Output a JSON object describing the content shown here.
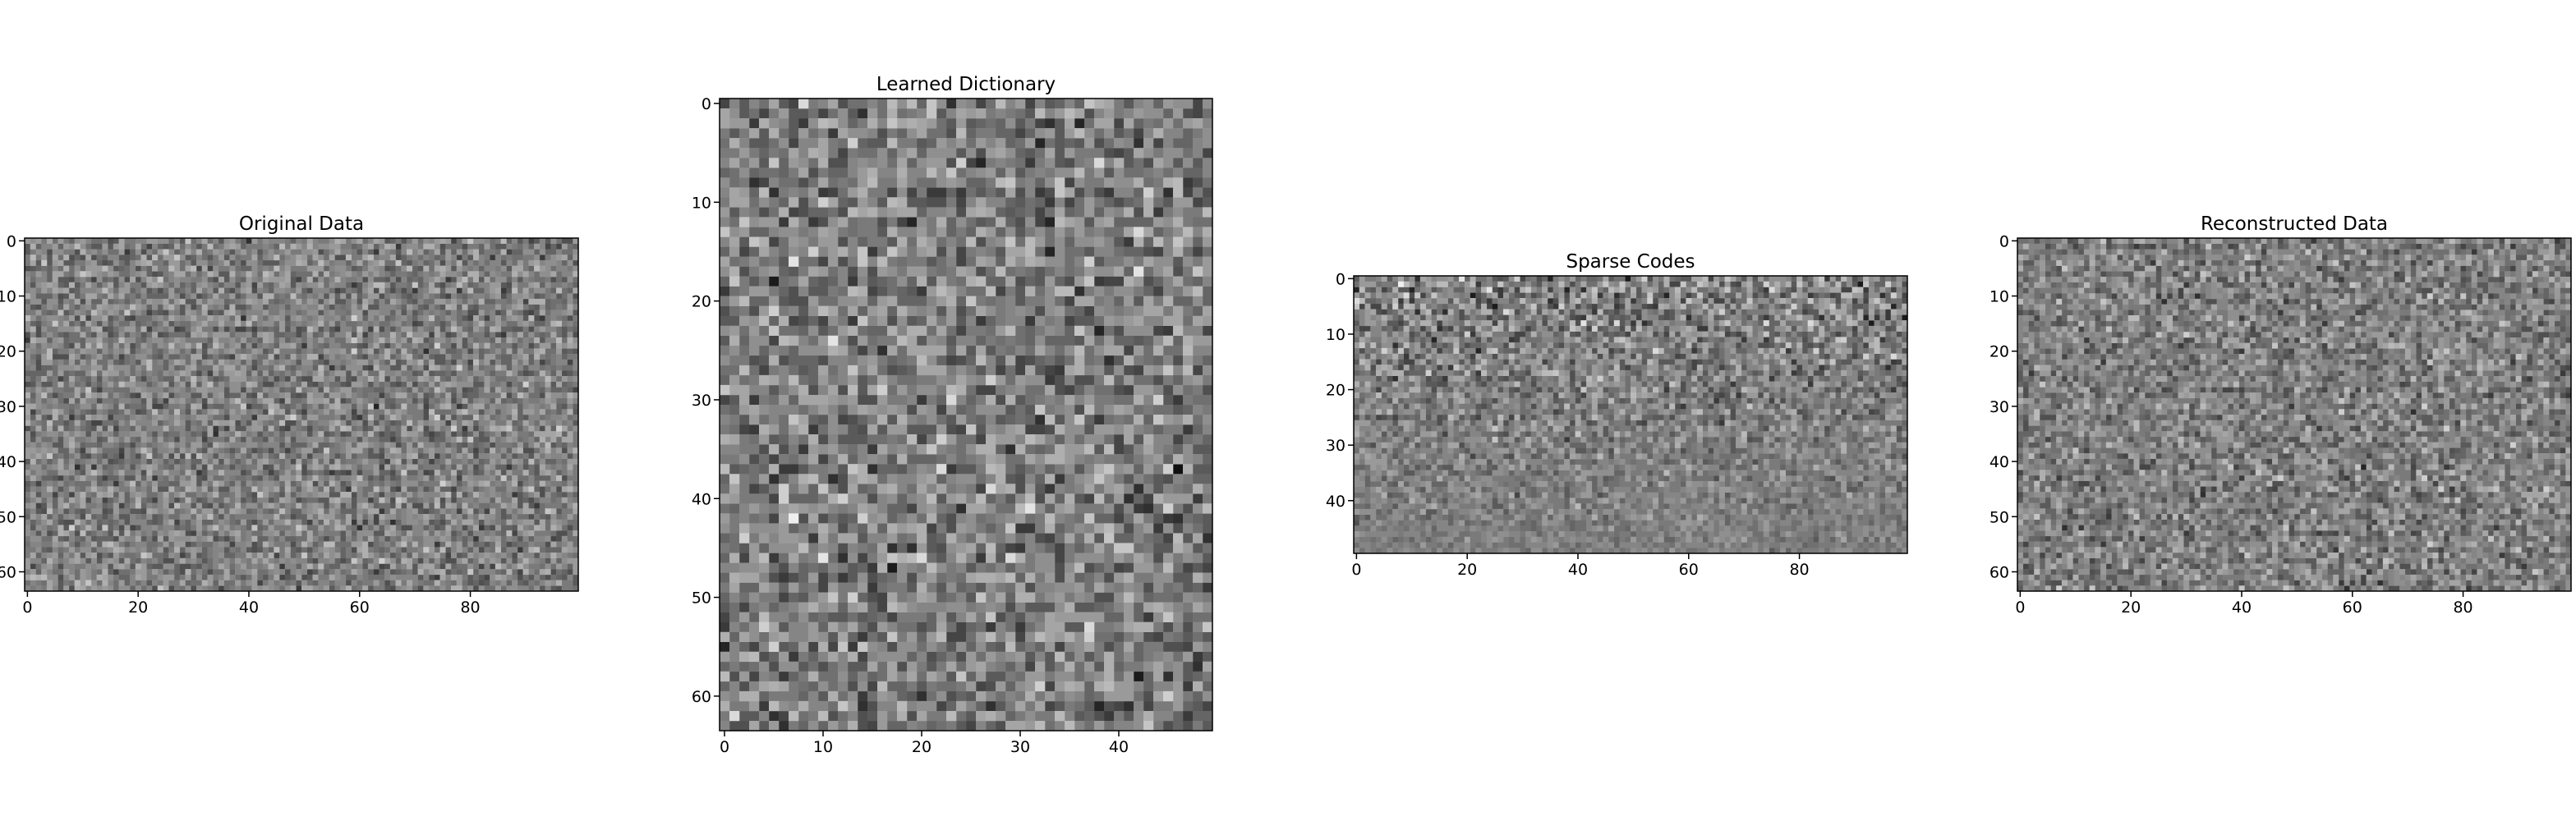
{
  "chart_data": [
    {
      "type": "heatmap",
      "title": "Original Data",
      "xlim": [
        -0.5,
        99.5
      ],
      "ylim": [
        63.5,
        -0.5
      ],
      "xticks": [
        0,
        20,
        40,
        60,
        80
      ],
      "yticks": [
        0,
        10,
        20,
        30,
        40,
        50,
        60
      ]
    },
    {
      "type": "heatmap",
      "title": "Learned Dictionary",
      "xlim": [
        -0.5,
        49.5
      ],
      "ylim": [
        63.5,
        -0.5
      ],
      "xticks": [
        0,
        10,
        20,
        30,
        40
      ],
      "yticks": [
        0,
        10,
        20,
        30,
        40,
        50,
        60
      ]
    },
    {
      "type": "heatmap",
      "title": "Sparse Codes",
      "xlim": [
        -0.5,
        99.5
      ],
      "ylim": [
        49.5,
        -0.5
      ],
      "xticks": [
        0,
        20,
        40,
        60,
        80
      ],
      "yticks": [
        0,
        10,
        20,
        30,
        40
      ]
    },
    {
      "type": "heatmap",
      "title": "Reconstructed Data",
      "xlim": [
        -0.5,
        99.5
      ],
      "ylim": [
        63.5,
        -0.5
      ],
      "xticks": [
        0,
        20,
        40,
        60,
        80
      ],
      "yticks": [
        0,
        10,
        20,
        30,
        40,
        50,
        60
      ]
    }
  ]
}
